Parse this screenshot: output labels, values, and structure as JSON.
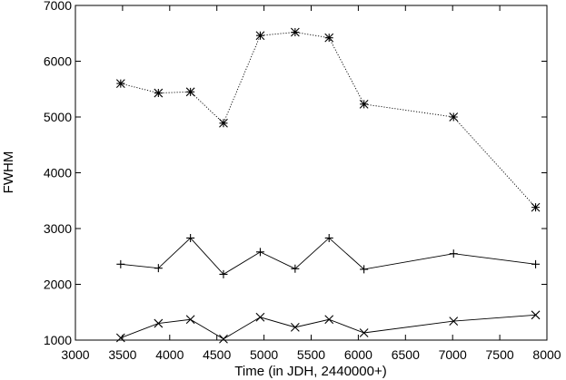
{
  "chart_data": {
    "type": "line",
    "title": "",
    "xlabel": "Time (in JDH, 2440000+)",
    "ylabel": "FWHM",
    "xlim": [
      3000,
      8000
    ],
    "ylim": [
      1000,
      7000
    ],
    "x_ticks": [
      3000,
      3500,
      4000,
      4500,
      5000,
      5500,
      6000,
      6500,
      7000,
      7500,
      8000
    ],
    "y_ticks": [
      1000,
      2000,
      3000,
      4000,
      5000,
      6000,
      7000
    ],
    "grid": false,
    "legend": "none",
    "series": [
      {
        "marker": "asterisk",
        "line_style": "dotted",
        "x": [
          3480,
          3880,
          4220,
          4570,
          4960,
          5330,
          5690,
          6060,
          7010,
          7880
        ],
        "y": [
          5600,
          5430,
          5450,
          4890,
          6460,
          6520,
          6420,
          5230,
          5000,
          3380
        ]
      },
      {
        "marker": "plus",
        "line_style": "solid",
        "x": [
          3480,
          3880,
          4220,
          4570,
          4960,
          5330,
          5690,
          6060,
          7010,
          7880
        ],
        "y": [
          2360,
          2290,
          2830,
          2180,
          2580,
          2280,
          2830,
          2270,
          2550,
          2360
        ]
      },
      {
        "marker": "cross",
        "line_style": "solid",
        "x": [
          3480,
          3880,
          4220,
          4570,
          4960,
          5330,
          5690,
          6060,
          7010,
          7880
        ],
        "y": [
          1040,
          1300,
          1370,
          1020,
          1410,
          1230,
          1370,
          1130,
          1340,
          1450
        ]
      }
    ]
  }
}
